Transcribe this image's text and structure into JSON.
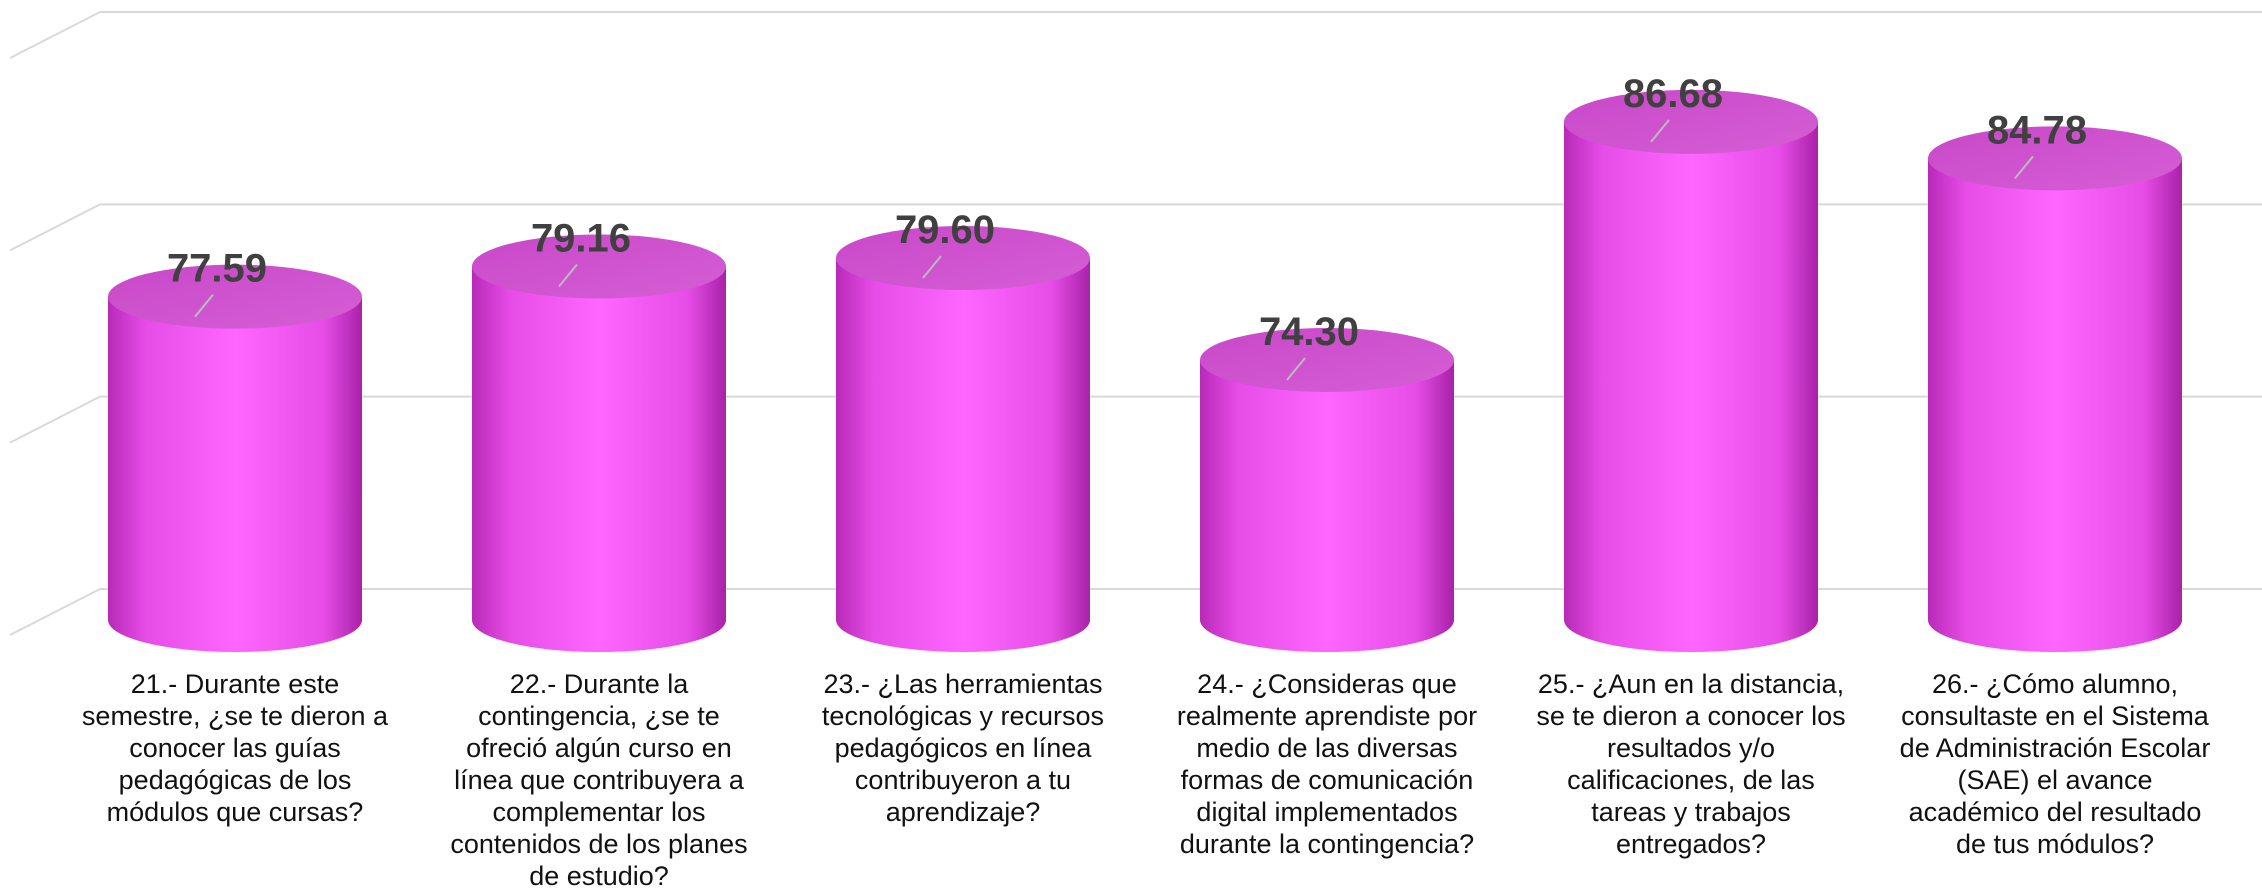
{
  "chart_data": {
    "type": "bar",
    "categories": [
      "21.- Durante este semestre, ¿se te dieron a conocer las guías pedagógicas de los módulos que cursas?",
      "22.- Durante la contingencia, ¿se te ofreció algún curso en línea que contribuyera a complementar los contenidos de los planes de estudio?",
      "23.- ¿Las herramientas tecnológicas y recursos pedagógicos en línea contribuyeron a tu aprendizaje?",
      "24.- ¿Consideras que realmente aprendiste por medio de las diversas formas de comunicación digital implementados durante la contingencia?",
      "25.- ¿Aun en la distancia, se te dieron a conocer los resultados y/o calificaciones, de las tareas y trabajos entregados?",
      "26.- ¿Cómo alumno, consultaste en el Sistema de Administración Escolar (SAE) el avance académico del resultado de tus módulos?"
    ],
    "values": [
      77.59,
      79.16,
      79.6,
      74.3,
      86.68,
      84.78
    ],
    "value_labels": [
      "77.59",
      "79.16",
      "79.60",
      "74.30",
      "86.68",
      "84.78"
    ],
    "color": "#ff5cff",
    "ylim": [
      60,
      90
    ],
    "yticks": [
      60,
      70,
      80,
      90
    ],
    "grid": true
  }
}
